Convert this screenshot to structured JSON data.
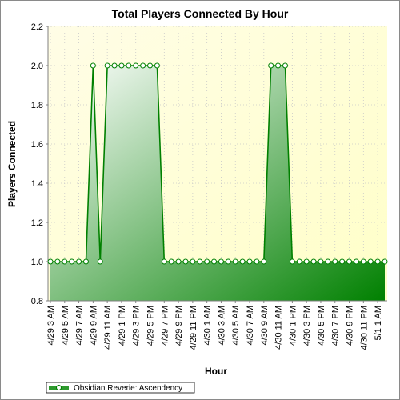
{
  "chart_data": {
    "type": "area",
    "title": "Total Players Connected By Hour",
    "xlabel": "Hour",
    "ylabel": "Players Connected",
    "ylim": [
      0.8,
      2.2
    ],
    "y_ticks": [
      "0.8",
      "1.0",
      "1.2",
      "1.4",
      "1.6",
      "1.8",
      "2.0",
      "2.2"
    ],
    "x_tick_labels": [
      "4/29 3 AM",
      "4/29 5 AM",
      "4/29 7 AM",
      "4/29 9 AM",
      "4/29 11 AM",
      "4/29 1 PM",
      "4/29 3 PM",
      "4/29 5 PM",
      "4/29 7 PM",
      "4/29 9 PM",
      "4/29 11 PM",
      "4/30 1 AM",
      "4/30 3 AM",
      "4/30 5 AM",
      "4/30 7 AM",
      "4/30 9 AM",
      "4/30 11 AM",
      "4/30 1 PM",
      "4/30 3 PM",
      "4/30 5 PM",
      "4/30 7 PM",
      "4/30 9 PM",
      "4/30 11 PM",
      "5/1 1 AM"
    ],
    "grid": true,
    "legend_position": "bottom-left",
    "series": [
      {
        "name": "Obsidian Reverie: Ascendency",
        "color": "#008000",
        "x_start": "4/29 3 AM",
        "interval_hours": 1,
        "values": [
          1,
          1,
          1,
          1,
          1,
          1,
          2,
          1,
          2,
          2,
          2,
          2,
          2,
          2,
          2,
          2,
          1,
          1,
          1,
          1,
          1,
          1,
          1,
          1,
          1,
          1,
          1,
          1,
          1,
          1,
          1,
          2,
          2,
          2,
          1,
          1,
          1,
          1,
          1,
          1,
          1,
          1,
          1,
          1,
          1,
          1,
          1,
          1
        ]
      }
    ]
  }
}
